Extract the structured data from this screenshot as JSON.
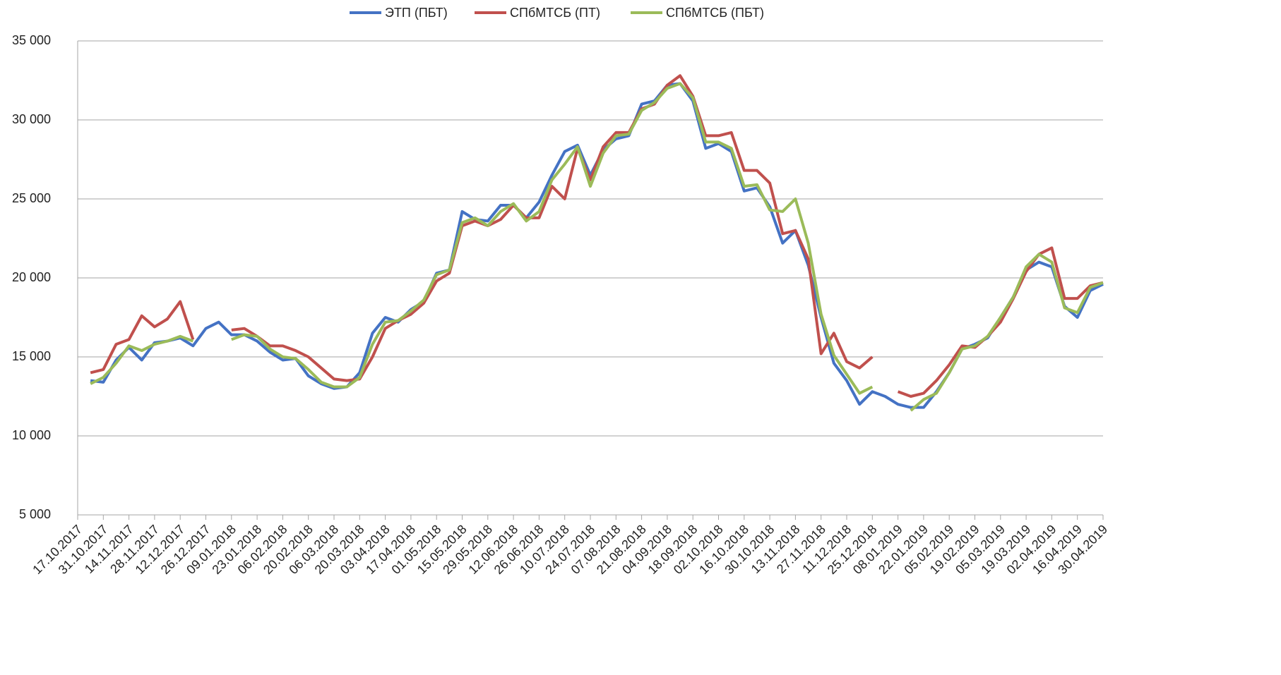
{
  "chart_data": {
    "type": "line",
    "legend": "top",
    "grid": true,
    "x": [
      "24.10.2017",
      "31.10.2017",
      "07.11.2017",
      "14.11.2017",
      "21.11.2017",
      "28.11.2017",
      "05.12.2017",
      "12.12.2017",
      "19.12.2017",
      "26.12.2017",
      "02.01.2018",
      "09.01.2018",
      "16.01.2018",
      "23.01.2018",
      "30.01.2018",
      "06.02.2018",
      "13.02.2018",
      "20.02.2018",
      "27.02.2018",
      "06.03.2018",
      "13.03.2018",
      "20.03.2018",
      "27.03.2018",
      "03.04.2018",
      "10.04.2018",
      "17.04.2018",
      "24.04.2018",
      "01.05.2018",
      "08.05.2018",
      "15.05.2018",
      "22.05.2018",
      "29.05.2018",
      "05.06.2018",
      "12.06.2018",
      "19.06.2018",
      "26.06.2018",
      "03.07.2018",
      "10.07.2018",
      "17.07.2018",
      "24.07.2018",
      "31.07.2018",
      "07.08.2018",
      "14.08.2018",
      "21.08.2018",
      "28.08.2018",
      "04.09.2018",
      "11.09.2018",
      "18.09.2018",
      "25.09.2018",
      "02.10.2018",
      "09.10.2018",
      "16.10.2018",
      "23.10.2018",
      "30.10.2018",
      "06.11.2018",
      "13.11.2018",
      "20.11.2018",
      "27.11.2018",
      "04.12.2018",
      "11.12.2018",
      "18.12.2018",
      "25.12.2018",
      "01.01.2019",
      "08.01.2019",
      "15.01.2019",
      "22.01.2019",
      "29.01.2019",
      "05.02.2019",
      "12.02.2019",
      "19.02.2019",
      "26.02.2019",
      "05.03.2019",
      "12.03.2019",
      "19.03.2019",
      "26.03.2019",
      "02.04.2019",
      "09.04.2019",
      "16.04.2019",
      "23.04.2019",
      "30.04.2019"
    ],
    "series": [
      {
        "name": "ЭТП (ПБТ)",
        "color": "#4472c4",
        "values": [
          13500,
          13400,
          14800,
          15600,
          14800,
          15900,
          16000,
          16200,
          15700,
          16800,
          17200,
          16400,
          16400,
          16000,
          15300,
          14800,
          14900,
          13800,
          13300,
          13000,
          13100,
          14000,
          16500,
          17500,
          17200,
          18000,
          18500,
          20300,
          20500,
          24200,
          23700,
          23600,
          24600,
          24600,
          23800,
          24800,
          26500,
          28000,
          28400,
          26500,
          28100,
          28800,
          29000,
          31000,
          31200,
          32200,
          32300,
          31200,
          28200,
          28500,
          28000,
          25500,
          25700,
          24500,
          22200,
          23000,
          20800,
          17500,
          14600,
          13500,
          12000,
          12800,
          12500,
          12000,
          11800,
          11800,
          12800,
          14000,
          15500,
          15800,
          16200,
          17500,
          18800,
          20500,
          21000,
          20700,
          18200,
          17500,
          19200,
          19600
        ]
      },
      {
        "name": "СПбМТСБ (ПТ)",
        "color": "#c0504d",
        "values": [
          14000,
          14200,
          15800,
          16100,
          17600,
          16900,
          17400,
          18500,
          16100,
          null,
          null,
          16700,
          16800,
          16300,
          15700,
          15700,
          15400,
          15000,
          14300,
          13600,
          13500,
          13600,
          15000,
          16800,
          17300,
          17700,
          18400,
          19800,
          20300,
          23300,
          23600,
          23300,
          23700,
          24600,
          23800,
          23800,
          25800,
          25000,
          28200,
          26200,
          28300,
          29200,
          29200,
          30700,
          31000,
          32200,
          32800,
          31500,
          29000,
          29000,
          29200,
          26800,
          26800,
          26000,
          22800,
          23000,
          21200,
          15200,
          16500,
          14700,
          14300,
          15000,
          null,
          12800,
          12500,
          12700,
          13500,
          14500,
          15700,
          15600,
          16300,
          17200,
          18700,
          20400,
          21500,
          21900,
          18700,
          18700,
          19500,
          19700
        ]
      },
      {
        "name": "СПбМТСБ (ПБТ)",
        "color": "#9bbb59",
        "values": [
          13300,
          13700,
          14600,
          15700,
          15400,
          15800,
          16000,
          16300,
          16000,
          null,
          null,
          16100,
          16400,
          16300,
          15500,
          15000,
          14900,
          14200,
          13400,
          13100,
          13100,
          13700,
          15800,
          17200,
          17300,
          17900,
          18600,
          20200,
          20500,
          23500,
          23800,
          23300,
          24200,
          24700,
          23600,
          24200,
          26200,
          27200,
          28300,
          25800,
          27900,
          29000,
          29100,
          30600,
          31100,
          32000,
          32300,
          31400,
          28600,
          28600,
          28200,
          25800,
          25900,
          24300,
          24200,
          25000,
          22200,
          17700,
          15100,
          13900,
          12700,
          13100,
          null,
          null,
          11600,
          12300,
          12700,
          14000,
          15500,
          15700,
          16300,
          17500,
          18800,
          20700,
          21500,
          21000,
          18100,
          17800,
          19400,
          19700
        ]
      }
    ],
    "xlim": [
      "17.10.2017",
      "30.04.2019"
    ],
    "xticks": [
      "17.10.2017",
      "31.10.2017",
      "14.11.2017",
      "28.11.2017",
      "12.12.2017",
      "26.12.2017",
      "09.01.2018",
      "23.01.2018",
      "06.02.2018",
      "20.02.2018",
      "06.03.2018",
      "20.03.2018",
      "03.04.2018",
      "17.04.2018",
      "01.05.2018",
      "15.05.2018",
      "29.05.2018",
      "12.06.2018",
      "26.06.2018",
      "10.07.2018",
      "24.07.2018",
      "07.08.2018",
      "21.08.2018",
      "04.09.2018",
      "18.09.2018",
      "02.10.2018",
      "16.10.2018",
      "30.10.2018",
      "13.11.2018",
      "27.11.2018",
      "11.12.2018",
      "25.12.2018",
      "08.01.2019",
      "22.01.2019",
      "05.02.2019",
      "19.02.2019",
      "05.03.2019",
      "19.03.2019",
      "02.04.2019",
      "16.04.2019",
      "30.04.2019"
    ],
    "ylim": [
      5000,
      35000
    ],
    "yticks": [
      {
        "value": 5000,
        "label": "5 000"
      },
      {
        "value": 10000,
        "label": "10 000"
      },
      {
        "value": 15000,
        "label": "15 000"
      },
      {
        "value": 20000,
        "label": "20 000"
      },
      {
        "value": 25000,
        "label": "25 000"
      },
      {
        "value": 30000,
        "label": "30 000"
      },
      {
        "value": 35000,
        "label": "35 000"
      }
    ]
  }
}
